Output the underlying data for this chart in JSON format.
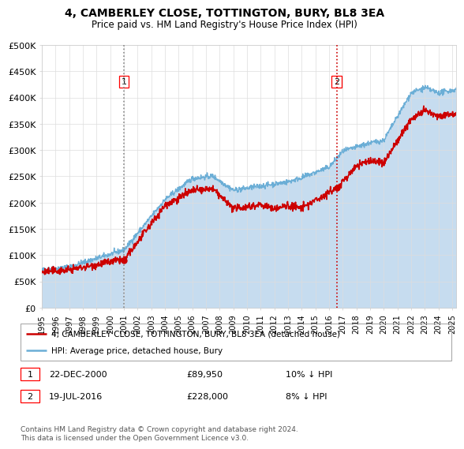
{
  "title": "4, CAMBERLEY CLOSE, TOTTINGTON, BURY, BL8 3EA",
  "subtitle": "Price paid vs. HM Land Registry's House Price Index (HPI)",
  "ylabel_ticks": [
    "£0",
    "£50K",
    "£100K",
    "£150K",
    "£200K",
    "£250K",
    "£300K",
    "£350K",
    "£400K",
    "£450K",
    "£500K"
  ],
  "ytick_values": [
    0,
    50000,
    100000,
    150000,
    200000,
    250000,
    300000,
    350000,
    400000,
    450000,
    500000
  ],
  "ylim": [
    0,
    500000
  ],
  "xlim_start": 1995.0,
  "xlim_end": 2025.3,
  "hpi_color": "#6baed6",
  "hpi_fill_color": "#c6dcef",
  "price_color": "#cc0000",
  "vline_color": "#aaaaaa",
  "vline2_color": "#cc0000",
  "marker1_date": 2001.0,
  "marker1_price": 89950,
  "marker2_date": 2016.55,
  "marker2_price": 228000,
  "legend_line1": "4, CAMBERLEY CLOSE, TOTTINGTON, BURY, BL8 3EA (detached house)",
  "legend_line2": "HPI: Average price, detached house, Bury",
  "footnote": "Contains HM Land Registry data © Crown copyright and database right 2024.\nThis data is licensed under the Open Government Licence v3.0.",
  "background_color": "#ffffff",
  "grid_color": "#dddddd"
}
